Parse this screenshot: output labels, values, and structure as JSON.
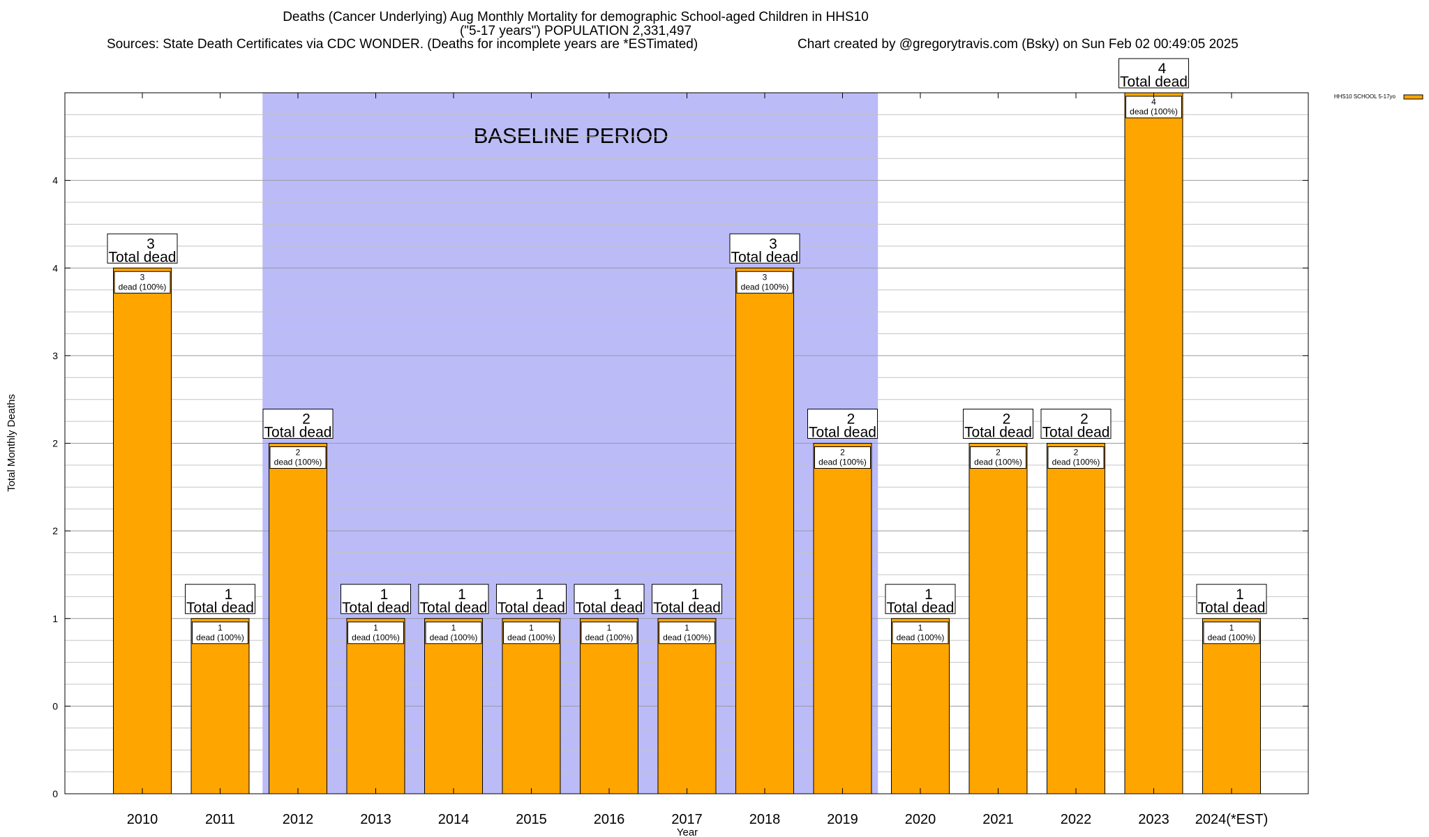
{
  "title": {
    "line1": "Deaths (Cancer Underlying) Aug Monthly Mortality for demographic School-aged Children in HHS10",
    "line2": "(\"5-17 years\") POPULATION 2,331,497",
    "sources": "Sources: State Death Certificates via CDC WONDER. (Deaths for incomplete years are *ESTimated)",
    "credit": "Chart created by @gregorytravis.com (Bsky) on Sun Feb 02 00:49:05 2025"
  },
  "chart_data": {
    "type": "bar",
    "categories": [
      "2010",
      "2011",
      "2012",
      "2013",
      "2014",
      "2015",
      "2016",
      "2017",
      "2018",
      "2019",
      "2020",
      "2021",
      "2022",
      "2023",
      "2024(*EST)"
    ],
    "series": [
      {
        "name": "HHS10 SCHOOL 5-17yo",
        "color": "#ffa500",
        "values": [
          3,
          1,
          2,
          1,
          1,
          1,
          1,
          1,
          3,
          2,
          1,
          2,
          2,
          4,
          1
        ]
      }
    ],
    "total_labels": [
      "3",
      "1",
      "2",
      "1",
      "1",
      "1",
      "1",
      "1",
      "3",
      "2",
      "1",
      "2",
      "2",
      "4",
      "1"
    ],
    "total_caption": "Total dead",
    "inner_numbers": [
      "3",
      "1",
      "2",
      "1",
      "1",
      "1",
      "1",
      "1",
      "3",
      "2",
      "1",
      "2",
      "2",
      "4",
      "1"
    ],
    "inner_caption": "dead (100%)",
    "xlabel": "Year",
    "ylabel": "Total Monthly Deaths",
    "ylim": [
      0,
      4
    ],
    "y_tick_labels": [
      "0",
      "0",
      "1",
      "2",
      "2",
      "3",
      "4",
      "4"
    ],
    "grid": true,
    "legend_position": "top-right",
    "baseline": {
      "label": "BASELINE PERIOD",
      "from": "2012",
      "to": "2019",
      "color": "#bbbbf8"
    },
    "bar_color": "#ffa500"
  }
}
